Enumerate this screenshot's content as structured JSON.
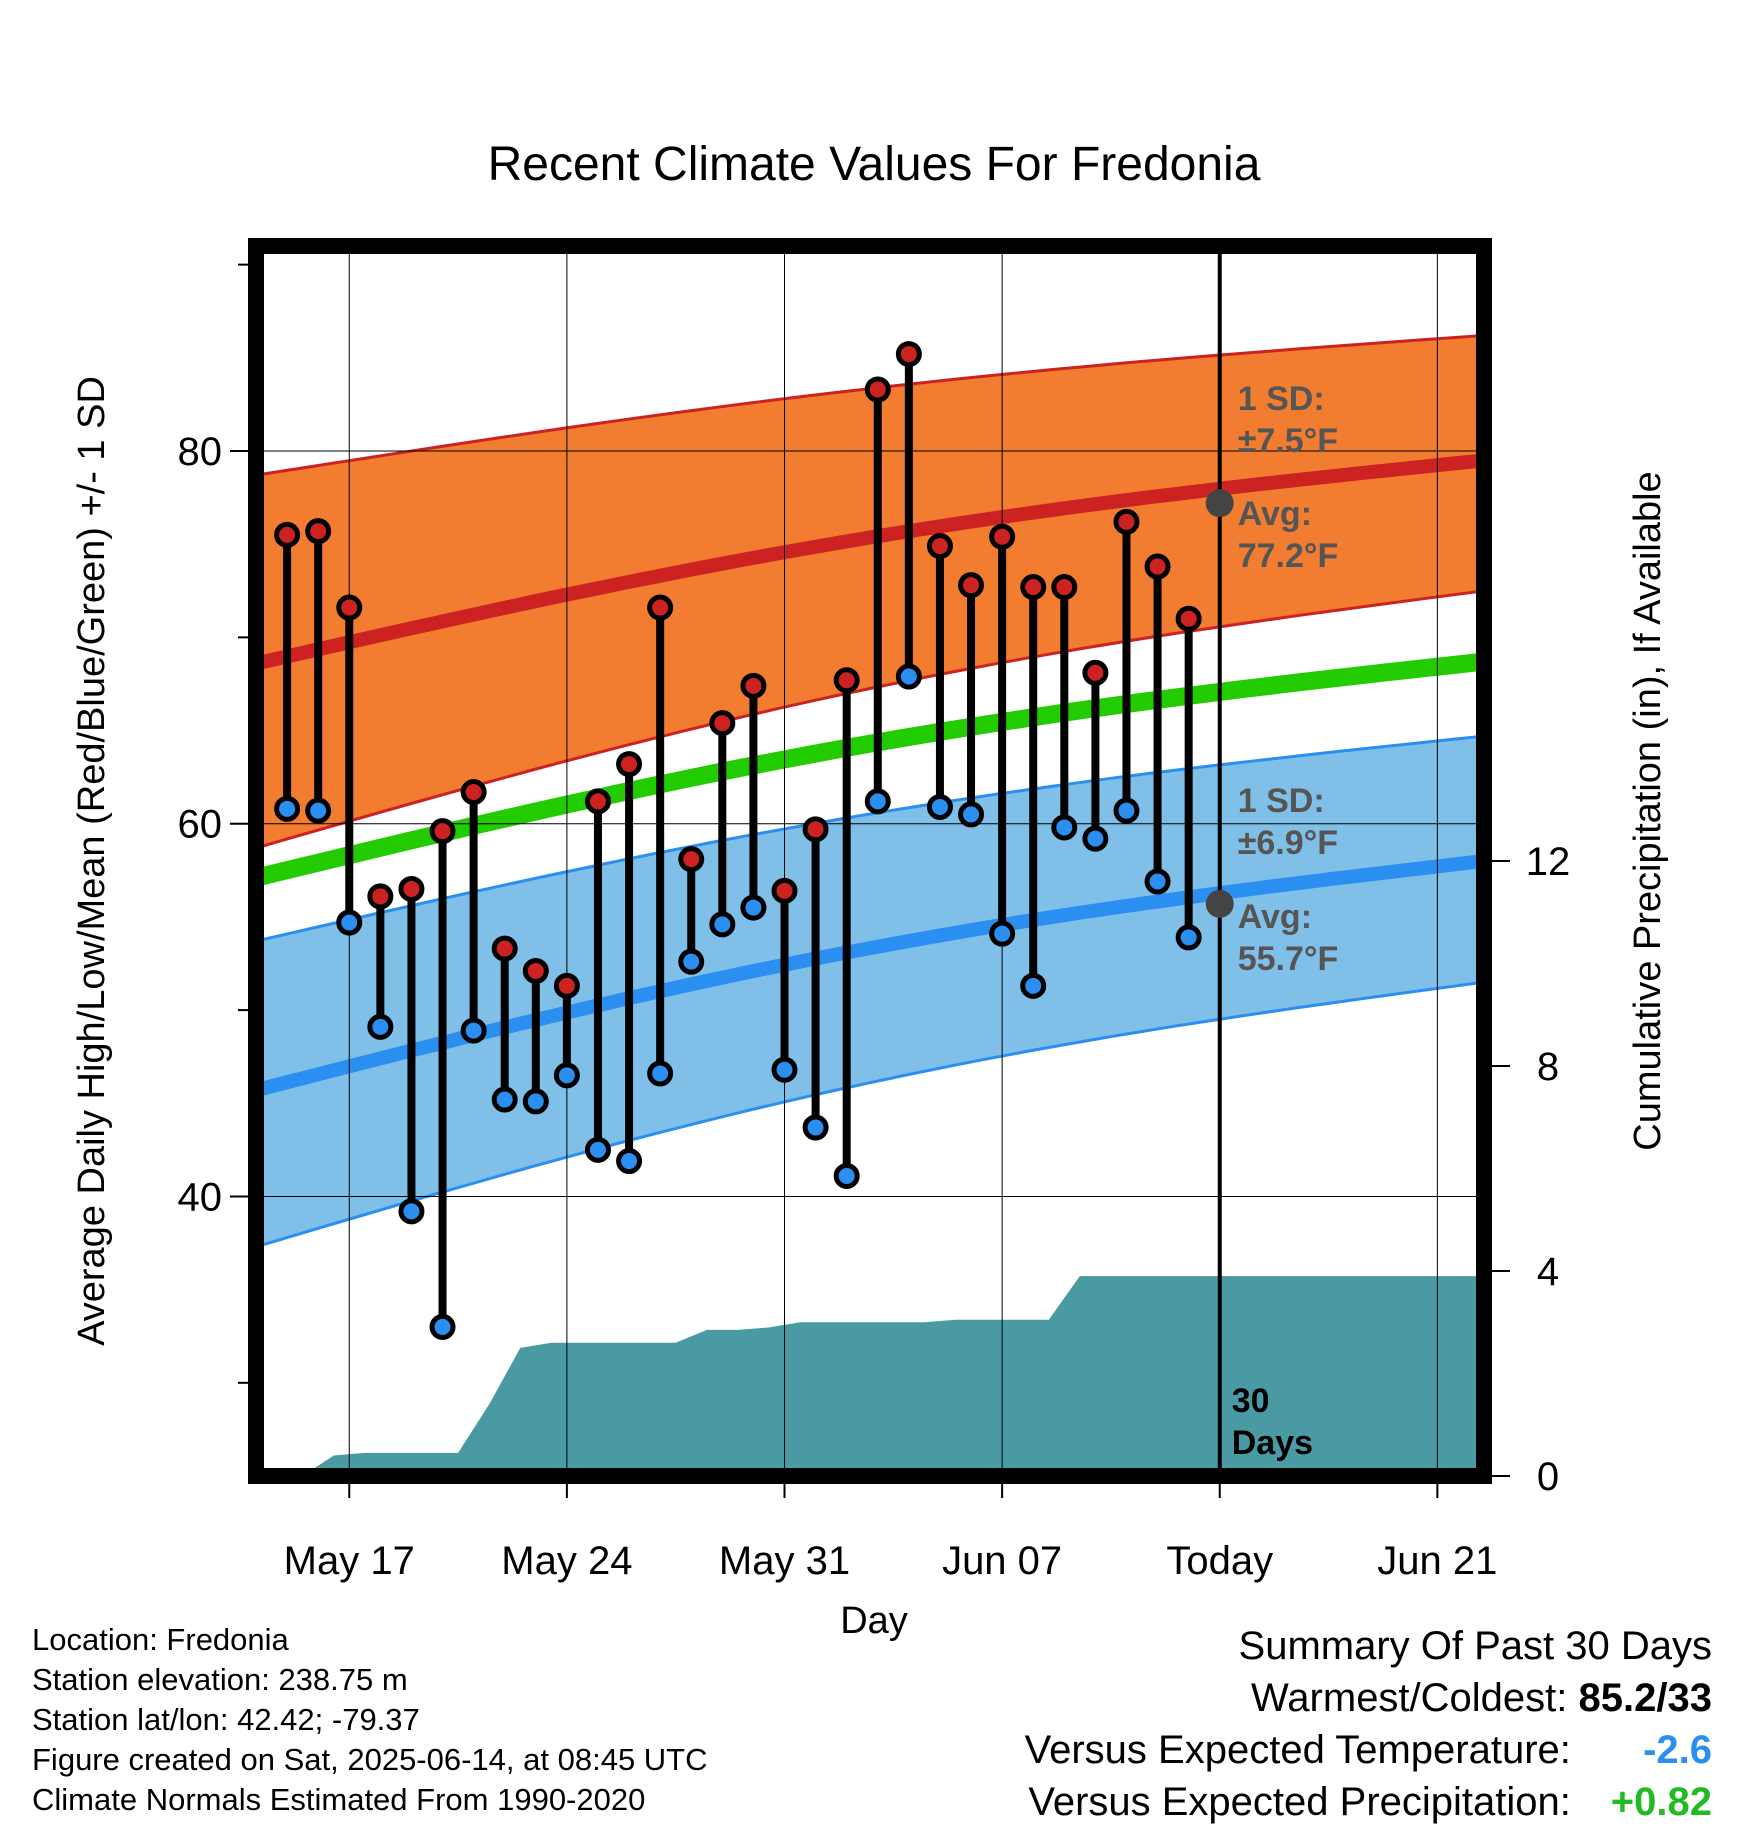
{
  "chart_data": {
    "type": "line",
    "title": "Recent Climate Values For Fredonia",
    "xlabel": "Day",
    "ylabel": "Average Daily High/Low/Mean (Red/Blue/Green) +/- 1 SD",
    "y2label": "Cumulative Precipitation (in), If Available",
    "ylim": [
      25,
      91
    ],
    "y2lim": [
      0,
      24
    ],
    "yticks": [
      40,
      60,
      80
    ],
    "y2ticks": [
      0,
      4,
      8,
      12
    ],
    "xlim": [
      0,
      39.5
    ],
    "xtick_positions": [
      3,
      10,
      17,
      24,
      31,
      38
    ],
    "xtick_labels": [
      "May 17",
      "May 24",
      "May 31",
      "Jun 07",
      "Today",
      "Jun 21"
    ],
    "today_index": 31,
    "days_label": "30\nDays",
    "normals": {
      "high_avg": [
        68.6,
        79.5
      ],
      "high_plus_sd": [
        78.7,
        86.2
      ],
      "high_minus_sd": [
        58.7,
        72.5
      ],
      "low_avg": [
        45.7,
        58.0
      ],
      "low_plus_sd": [
        53.7,
        64.7
      ],
      "low_minus_sd": [
        37.3,
        51.5
      ],
      "mean_avg": [
        57.1,
        68.7
      ]
    },
    "annotations": {
      "high_sd": "1 SD:",
      "high_sd_val": "±7.5°F",
      "high_avg": "Avg:",
      "high_avg_val": "77.2°F",
      "low_sd": "1 SD:",
      "low_sd_val": "±6.9°F",
      "low_avg": "Avg:",
      "low_avg_val": "55.7°F",
      "today_high_avg": 77.2,
      "today_low_avg": 55.7
    },
    "series": [
      {
        "name": "High",
        "color": "#cc2222",
        "x": [
          1,
          2,
          3,
          4,
          5,
          6,
          7,
          8,
          9,
          10,
          11,
          12,
          13,
          14,
          15,
          16,
          17,
          18,
          19,
          20,
          21,
          22,
          23,
          24,
          25,
          26,
          27,
          28,
          29,
          30
        ],
        "values": [
          75.5,
          75.7,
          71.6,
          56.1,
          56.5,
          59.6,
          61.7,
          53.3,
          52.1,
          51.3,
          61.2,
          63.2,
          71.6,
          58.1,
          65.4,
          67.4,
          56.4,
          59.7,
          67.7,
          83.3,
          85.2,
          74.9,
          72.8,
          75.4,
          72.7,
          72.7,
          68.1,
          76.2,
          73.8,
          71.0
        ]
      },
      {
        "name": "Low",
        "color": "#2a8ff0",
        "x": [
          1,
          2,
          3,
          4,
          5,
          6,
          7,
          8,
          9,
          10,
          11,
          12,
          13,
          14,
          15,
          16,
          17,
          18,
          19,
          20,
          21,
          22,
          23,
          24,
          25,
          26,
          27,
          28,
          29,
          30
        ],
        "values": [
          60.8,
          60.7,
          54.7,
          49.1,
          39.2,
          33.0,
          48.9,
          45.2,
          45.1,
          46.5,
          42.5,
          41.9,
          46.6,
          52.6,
          54.6,
          55.5,
          46.8,
          43.7,
          41.1,
          61.2,
          67.9,
          60.9,
          60.5,
          54.1,
          51.3,
          59.8,
          59.2,
          60.7,
          56.9,
          53.9
        ]
      },
      {
        "name": "Cumulative Precipitation",
        "color": "#4a9aa3",
        "x": [
          0.5,
          1.5,
          2.5,
          3.5,
          4.5,
          5.5,
          6.5,
          7.5,
          8.5,
          9.5,
          10.5,
          11.5,
          12.5,
          13.5,
          14.5,
          15.5,
          16.5,
          17.5,
          18.5,
          19.5,
          20.5,
          21.5,
          22.5,
          23.5,
          24.5,
          25.5,
          26.5,
          27.5,
          28.5,
          29.5,
          30.5,
          39.5
        ],
        "values": [
          0.0,
          0.0,
          0.4,
          0.45,
          0.45,
          0.45,
          0.45,
          1.4,
          2.5,
          2.6,
          2.6,
          2.6,
          2.6,
          2.6,
          2.85,
          2.85,
          2.9,
          3.0,
          3.0,
          3.0,
          3.0,
          3.0,
          3.05,
          3.05,
          3.05,
          3.05,
          3.9,
          3.9,
          3.9,
          3.9,
          3.9,
          3.9
        ]
      }
    ]
  },
  "footer": {
    "location": "Location: Fredonia",
    "elevation": "Station elevation: 238.75 m",
    "latlon": "Station lat/lon: 42.42; -79.37",
    "created": "Figure created on Sat, 2025-06-14, at 08:45 UTC",
    "normals": "Climate Normals Estimated From 1990-2020"
  },
  "summary": {
    "title": "Summary Of Past 30 Days",
    "warmest_label": "Warmest/Coldest:",
    "warmest_value": "85.2/33",
    "temp_label": "Versus Expected Temperature:",
    "temp_value": "-2.6",
    "temp_color": "#2a8ff0",
    "precip_label": "Versus Expected Precipitation:",
    "precip_value": "+0.82",
    "precip_color": "#22bb22"
  },
  "colors": {
    "high_band": "#f27c30",
    "high_line": "#cc2222",
    "low_band": "#80c0e8",
    "low_line": "#2a8ff0",
    "mean_line": "#22cc00",
    "precip": "#4a9aa3",
    "marker_edge": "#000000",
    "annotation_text": "#555555"
  }
}
